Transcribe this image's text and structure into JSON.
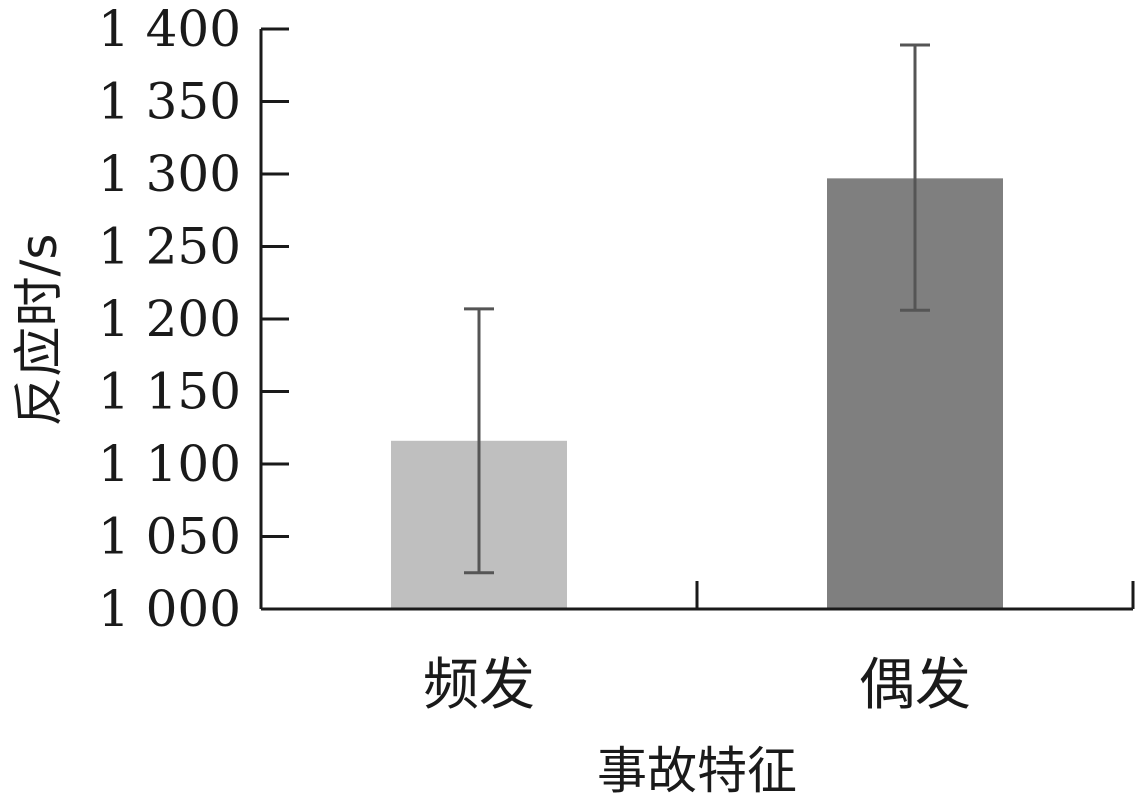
{
  "chart_data": {
    "type": "bar",
    "categories": [
      "频发",
      "偶发"
    ],
    "values": [
      1116,
      1297
    ],
    "error_bars": [
      {
        "low": 1025,
        "high": 1207
      },
      {
        "low": 1206,
        "high": 1389
      }
    ],
    "bar_colors": [
      "#bfbfbf",
      "#7f7f7f"
    ],
    "error_color": "#555555",
    "xlabel": "事故特征",
    "ylabel": "反应时/s",
    "ylim": [
      1000,
      1400
    ],
    "yticks": [
      1000,
      1050,
      1100,
      1150,
      1200,
      1250,
      1300,
      1350,
      1400
    ],
    "ytick_labels": [
      "1 000",
      "1 050",
      "1 100",
      "1 150",
      "1 200",
      "1 250",
      "1 300",
      "1 350",
      "1 400"
    ],
    "grid": false,
    "legend": "none"
  }
}
